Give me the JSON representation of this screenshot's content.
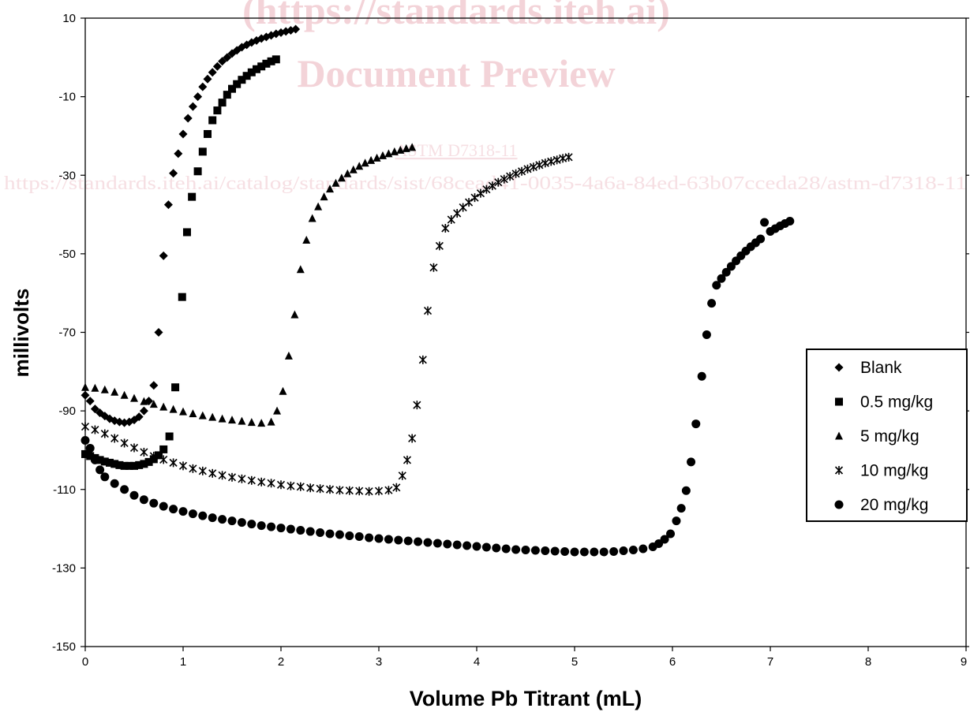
{
  "watermark": {
    "line1": "(https://standards.iteh.ai)",
    "line2": "Document Preview",
    "line3": "ASTM D7318-11",
    "line4": "https://standards.iteh.ai/catalog/standards/sist/68cead41-0035-4a6a-84ed-63b07cceda28/astm-d7318-11"
  },
  "chart_data": {
    "type": "scatter",
    "title": "",
    "xlabel": "Volume Pb Titrant (mL)",
    "ylabel": "millivolts",
    "xlim": [
      0,
      9
    ],
    "ylim": [
      -150,
      10
    ],
    "xticks": [
      "0",
      "1",
      "2",
      "3",
      "4",
      "5",
      "6",
      "7",
      "8",
      "9"
    ],
    "yticks": [
      "10",
      "-10",
      "-30",
      "-50",
      "-70",
      "-90",
      "-110",
      "-130",
      "-150"
    ],
    "grid": false,
    "legend_position": "right",
    "series": [
      {
        "name": "Blank",
        "marker": "diamond",
        "color": "#000000",
        "points": [
          [
            0.0,
            -86
          ],
          [
            0.05,
            -87.5
          ],
          [
            0.1,
            -89.5
          ],
          [
            0.15,
            -90.5
          ],
          [
            0.2,
            -91.3
          ],
          [
            0.25,
            -92
          ],
          [
            0.3,
            -92.5
          ],
          [
            0.35,
            -92.8
          ],
          [
            0.4,
            -93
          ],
          [
            0.45,
            -92.8
          ],
          [
            0.5,
            -92.3
          ],
          [
            0.55,
            -91.5
          ],
          [
            0.6,
            -90
          ],
          [
            0.65,
            -87.5
          ],
          [
            0.7,
            -83.5
          ],
          [
            0.75,
            -70
          ],
          [
            0.8,
            -50.5
          ],
          [
            0.85,
            -37.5
          ],
          [
            0.9,
            -29.5
          ],
          [
            0.95,
            -24.5
          ],
          [
            1.0,
            -19.5
          ],
          [
            1.05,
            -15.5
          ],
          [
            1.1,
            -12.5
          ],
          [
            1.15,
            -10
          ],
          [
            1.2,
            -7.5
          ],
          [
            1.25,
            -5.5
          ],
          [
            1.3,
            -3.8
          ],
          [
            1.35,
            -2.3
          ],
          [
            1.4,
            -1
          ],
          [
            1.45,
            0
          ],
          [
            1.5,
            1
          ],
          [
            1.55,
            1.8
          ],
          [
            1.6,
            2.6
          ],
          [
            1.65,
            3.2
          ],
          [
            1.7,
            3.8
          ],
          [
            1.75,
            4.3
          ],
          [
            1.8,
            4.8
          ],
          [
            1.85,
            5.2
          ],
          [
            1.9,
            5.6
          ],
          [
            1.95,
            6
          ],
          [
            2.0,
            6.3
          ],
          [
            2.05,
            6.6
          ],
          [
            2.1,
            6.9
          ],
          [
            2.15,
            7.2
          ]
        ]
      },
      {
        "name": "0.5 mg/kg",
        "marker": "square",
        "color": "#000000",
        "points": [
          [
            0.0,
            -101
          ],
          [
            0.05,
            -101.5
          ],
          [
            0.1,
            -102
          ],
          [
            0.15,
            -102.5
          ],
          [
            0.2,
            -102.9
          ],
          [
            0.25,
            -103.2
          ],
          [
            0.3,
            -103.5
          ],
          [
            0.35,
            -103.8
          ],
          [
            0.4,
            -104
          ],
          [
            0.45,
            -104
          ],
          [
            0.5,
            -104
          ],
          [
            0.55,
            -103.8
          ],
          [
            0.6,
            -103.5
          ],
          [
            0.65,
            -103
          ],
          [
            0.7,
            -102.3
          ],
          [
            0.75,
            -101.3
          ],
          [
            0.8,
            -99.8
          ],
          [
            0.86,
            -96.5
          ],
          [
            0.92,
            -84
          ],
          [
            0.99,
            -61
          ],
          [
            1.04,
            -44.5
          ],
          [
            1.09,
            -35.5
          ],
          [
            1.15,
            -29
          ],
          [
            1.2,
            -24
          ],
          [
            1.25,
            -19.5
          ],
          [
            1.3,
            -16
          ],
          [
            1.35,
            -13.5
          ],
          [
            1.4,
            -11.5
          ],
          [
            1.45,
            -9.5
          ],
          [
            1.5,
            -8
          ],
          [
            1.55,
            -6.8
          ],
          [
            1.6,
            -5.7
          ],
          [
            1.65,
            -4.7
          ],
          [
            1.7,
            -3.8
          ],
          [
            1.75,
            -3
          ],
          [
            1.8,
            -2.3
          ],
          [
            1.85,
            -1.6
          ],
          [
            1.9,
            -1
          ],
          [
            1.95,
            -0.5
          ]
        ]
      },
      {
        "name": "5 mg/kg",
        "marker": "triangle",
        "color": "#000000",
        "points": [
          [
            0.0,
            -84
          ],
          [
            0.1,
            -84.2
          ],
          [
            0.2,
            -84.6
          ],
          [
            0.3,
            -85.2
          ],
          [
            0.4,
            -86
          ],
          [
            0.5,
            -86.8
          ],
          [
            0.6,
            -87.6
          ],
          [
            0.7,
            -88.3
          ],
          [
            0.8,
            -89
          ],
          [
            0.9,
            -89.6
          ],
          [
            1.0,
            -90.2
          ],
          [
            1.1,
            -90.7
          ],
          [
            1.2,
            -91.2
          ],
          [
            1.3,
            -91.6
          ],
          [
            1.4,
            -92
          ],
          [
            1.5,
            -92.3
          ],
          [
            1.6,
            -92.6
          ],
          [
            1.7,
            -92.9
          ],
          [
            1.8,
            -93.1
          ],
          [
            1.9,
            -92.8
          ],
          [
            1.96,
            -90
          ],
          [
            2.02,
            -85
          ],
          [
            2.08,
            -76
          ],
          [
            2.14,
            -65.5
          ],
          [
            2.2,
            -54
          ],
          [
            2.26,
            -46.5
          ],
          [
            2.32,
            -41
          ],
          [
            2.38,
            -38
          ],
          [
            2.44,
            -35.5
          ],
          [
            2.5,
            -33.5
          ],
          [
            2.56,
            -32
          ],
          [
            2.62,
            -30.7
          ],
          [
            2.68,
            -29.6
          ],
          [
            2.74,
            -28.6
          ],
          [
            2.8,
            -27.7
          ],
          [
            2.86,
            -26.9
          ],
          [
            2.92,
            -26.2
          ],
          [
            2.98,
            -25.6
          ],
          [
            3.04,
            -25
          ],
          [
            3.1,
            -24.5
          ],
          [
            3.16,
            -24
          ],
          [
            3.22,
            -23.6
          ],
          [
            3.28,
            -23.2
          ],
          [
            3.34,
            -22.9
          ]
        ]
      },
      {
        "name": "10 mg/kg",
        "marker": "asterisk",
        "color": "#000000",
        "points": [
          [
            0.0,
            -94
          ],
          [
            0.1,
            -94.8
          ],
          [
            0.2,
            -95.8
          ],
          [
            0.3,
            -97
          ],
          [
            0.4,
            -98.2
          ],
          [
            0.5,
            -99.4
          ],
          [
            0.6,
            -100.5
          ],
          [
            0.7,
            -101.5
          ],
          [
            0.8,
            -102.4
          ],
          [
            0.9,
            -103.2
          ],
          [
            1.0,
            -104
          ],
          [
            1.1,
            -104.7
          ],
          [
            1.2,
            -105.3
          ],
          [
            1.3,
            -105.9
          ],
          [
            1.4,
            -106.4
          ],
          [
            1.5,
            -106.9
          ],
          [
            1.6,
            -107.3
          ],
          [
            1.7,
            -107.7
          ],
          [
            1.8,
            -108.1
          ],
          [
            1.9,
            -108.4
          ],
          [
            2.0,
            -108.8
          ],
          [
            2.1,
            -109.1
          ],
          [
            2.2,
            -109.3
          ],
          [
            2.3,
            -109.6
          ],
          [
            2.4,
            -109.8
          ],
          [
            2.5,
            -110
          ],
          [
            2.6,
            -110.2
          ],
          [
            2.7,
            -110.3
          ],
          [
            2.8,
            -110.4
          ],
          [
            2.9,
            -110.5
          ],
          [
            3.0,
            -110.4
          ],
          [
            3.1,
            -110.2
          ],
          [
            3.18,
            -109.5
          ],
          [
            3.24,
            -106.5
          ],
          [
            3.29,
            -102.5
          ],
          [
            3.34,
            -97
          ],
          [
            3.39,
            -88.5
          ],
          [
            3.45,
            -77
          ],
          [
            3.5,
            -64.5
          ],
          [
            3.56,
            -53.5
          ],
          [
            3.62,
            -48
          ],
          [
            3.68,
            -43.5
          ],
          [
            3.74,
            -41.3
          ],
          [
            3.8,
            -39.7
          ],
          [
            3.86,
            -38.2
          ],
          [
            3.92,
            -36.9
          ],
          [
            3.98,
            -35.7
          ],
          [
            4.04,
            -34.6
          ],
          [
            4.1,
            -33.6
          ],
          [
            4.16,
            -32.7
          ],
          [
            4.22,
            -31.8
          ],
          [
            4.28,
            -31
          ],
          [
            4.34,
            -30.3
          ],
          [
            4.4,
            -29.6
          ],
          [
            4.46,
            -29
          ],
          [
            4.52,
            -28.4
          ],
          [
            4.58,
            -27.9
          ],
          [
            4.64,
            -27.4
          ],
          [
            4.7,
            -26.9
          ],
          [
            4.76,
            -26.5
          ],
          [
            4.82,
            -26.1
          ],
          [
            4.88,
            -25.7
          ],
          [
            4.94,
            -25.4
          ]
        ]
      },
      {
        "name": "20 mg/kg",
        "marker": "circle",
        "color": "#000000",
        "points": [
          [
            0.0,
            -97.5
          ],
          [
            0.05,
            -99.5
          ],
          [
            0.1,
            -102.5
          ],
          [
            0.15,
            -105
          ],
          [
            0.2,
            -106.8
          ],
          [
            0.3,
            -108.5
          ],
          [
            0.4,
            -110
          ],
          [
            0.5,
            -111.5
          ],
          [
            0.6,
            -112.6
          ],
          [
            0.7,
            -113.5
          ],
          [
            0.8,
            -114.3
          ],
          [
            0.9,
            -115
          ],
          [
            1.0,
            -115.6
          ],
          [
            1.1,
            -116.2
          ],
          [
            1.2,
            -116.7
          ],
          [
            1.3,
            -117.2
          ],
          [
            1.4,
            -117.6
          ],
          [
            1.5,
            -118
          ],
          [
            1.6,
            -118.4
          ],
          [
            1.7,
            -118.8
          ],
          [
            1.8,
            -119.2
          ],
          [
            1.9,
            -119.5
          ],
          [
            2.0,
            -119.8
          ],
          [
            2.1,
            -120.1
          ],
          [
            2.2,
            -120.4
          ],
          [
            2.3,
            -120.7
          ],
          [
            2.4,
            -121
          ],
          [
            2.5,
            -121.3
          ],
          [
            2.6,
            -121.5
          ],
          [
            2.7,
            -121.8
          ],
          [
            2.8,
            -122
          ],
          [
            2.9,
            -122.3
          ],
          [
            3.0,
            -122.5
          ],
          [
            3.1,
            -122.7
          ],
          [
            3.2,
            -122.9
          ],
          [
            3.3,
            -123.1
          ],
          [
            3.4,
            -123.3
          ],
          [
            3.5,
            -123.5
          ],
          [
            3.6,
            -123.7
          ],
          [
            3.7,
            -123.9
          ],
          [
            3.8,
            -124.1
          ],
          [
            3.9,
            -124.3
          ],
          [
            4.0,
            -124.5
          ],
          [
            4.1,
            -124.7
          ],
          [
            4.2,
            -124.9
          ],
          [
            4.3,
            -125.1
          ],
          [
            4.4,
            -125.3
          ],
          [
            4.5,
            -125.4
          ],
          [
            4.6,
            -125.5
          ],
          [
            4.7,
            -125.6
          ],
          [
            4.8,
            -125.7
          ],
          [
            4.9,
            -125.8
          ],
          [
            5.0,
            -125.9
          ],
          [
            5.1,
            -125.9
          ],
          [
            5.2,
            -125.9
          ],
          [
            5.3,
            -125.9
          ],
          [
            5.4,
            -125.8
          ],
          [
            5.5,
            -125.6
          ],
          [
            5.6,
            -125.4
          ],
          [
            5.7,
            -125.1
          ],
          [
            5.8,
            -124.6
          ],
          [
            5.86,
            -123.8
          ],
          [
            5.92,
            -122.7
          ],
          [
            5.98,
            -121.3
          ],
          [
            6.04,
            -118
          ],
          [
            6.09,
            -114.8
          ],
          [
            6.14,
            -110.3
          ],
          [
            6.19,
            -103
          ],
          [
            6.24,
            -93.3
          ],
          [
            6.3,
            -81.2
          ],
          [
            6.35,
            -70.6
          ],
          [
            6.4,
            -62.6
          ],
          [
            6.45,
            -58
          ],
          [
            6.5,
            -56.3
          ],
          [
            6.55,
            -54.7
          ],
          [
            6.6,
            -53.2
          ],
          [
            6.65,
            -51.8
          ],
          [
            6.7,
            -50.5
          ],
          [
            6.75,
            -49.3
          ],
          [
            6.8,
            -48.2
          ],
          [
            6.85,
            -47.2
          ],
          [
            6.9,
            -46.2
          ],
          [
            6.94,
            -42
          ],
          [
            7.0,
            -44.3
          ],
          [
            7.05,
            -43.6
          ],
          [
            7.1,
            -42.9
          ],
          [
            7.15,
            -42.3
          ],
          [
            7.2,
            -41.7
          ]
        ]
      }
    ]
  }
}
